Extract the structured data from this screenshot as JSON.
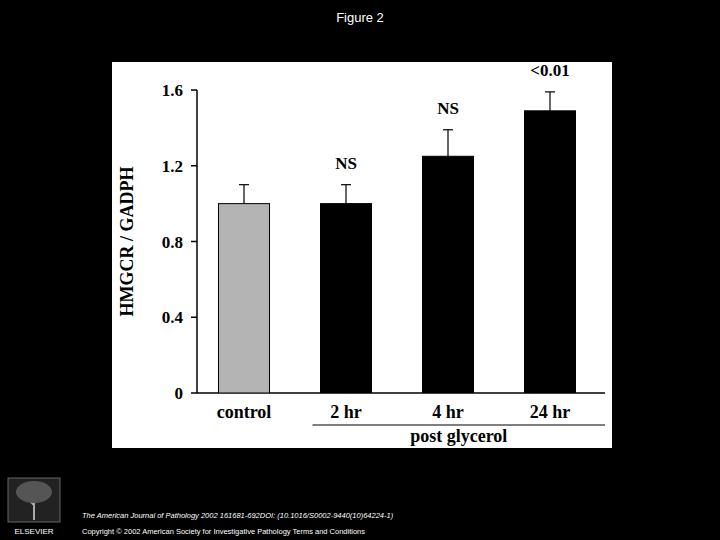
{
  "chart_data": {
    "type": "bar",
    "title": "Figure 2",
    "categories": [
      "control",
      "2 hr",
      "4 hr",
      "24 hr"
    ],
    "values": [
      1.0,
      1.0,
      1.25,
      1.49
    ],
    "errors": [
      0.1,
      0.1,
      0.14,
      0.1
    ],
    "significance": [
      null,
      "NS",
      "NS",
      "<0.01"
    ],
    "colors": [
      "#b4b4b4",
      "#000000",
      "#000000",
      "#000000"
    ],
    "y_label": "HMGCR / GADPH",
    "group_label": "post glycerol",
    "ylim": [
      0,
      1.6
    ],
    "yticks": [
      0,
      0.4,
      0.8,
      1.2,
      1.6
    ],
    "grid": false
  },
  "footer": {
    "publisher": "ELSEVIER",
    "citation": "The American Journal of Pathology 2002 161681-692DOI: (10.1016/S0002-9440(10)64224-1)",
    "copyright": "Copyright © 2002 American Society for Investigative Pathology Terms and Conditions"
  }
}
